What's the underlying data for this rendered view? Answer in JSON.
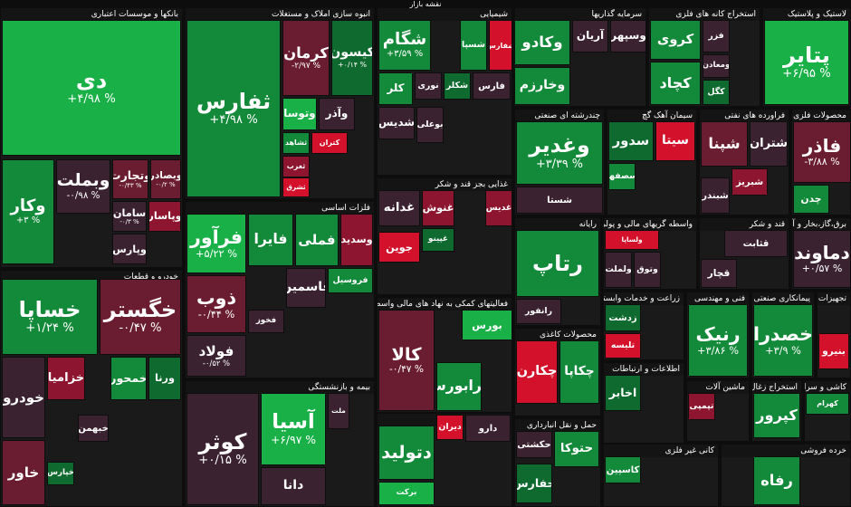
{
  "header": {
    "title": "نقشه بازار"
  },
  "sectors": [
    {
      "title": "بانکها و موسسات اعتباری",
      "tiles": [
        {
          "name": "دی",
          "change": "+۴/۹۸ %"
        },
        {
          "name": "وکار",
          "change": "+۳ %"
        },
        {
          "name": "وبملت",
          "change": "-۰/۹۸ %"
        },
        {
          "name": "وتجارت",
          "change": "-۰/۴۳ %"
        },
        {
          "name": "وبصادر",
          "change": "-۰/۲ %"
        },
        {
          "name": "سامان",
          "change": "-۰/۳ %"
        },
        {
          "name": "وپاسار"
        },
        {
          "name": "وپارس"
        }
      ]
    },
    {
      "title": "انبوه سازی املاک و مستغلات",
      "tiles": [
        {
          "name": "ثفارس",
          "change": "+۴/۹۸ %"
        },
        {
          "name": "کرمان",
          "change": "-۲/۹۷ %"
        },
        {
          "name": "کیسون",
          "change": "+۰/۱۴ %"
        },
        {
          "name": "وتوسا"
        },
        {
          "name": "وآذر"
        },
        {
          "name": "ثشاهد"
        },
        {
          "name": "کتران"
        },
        {
          "name": "ثغرب"
        },
        {
          "name": "ثشرق"
        }
      ]
    },
    {
      "title": "شیمیایی",
      "tiles": [
        {
          "name": "شگام",
          "change": "+۳/۵۹ %"
        },
        {
          "name": "شسپا"
        },
        {
          "name": "شفارس"
        },
        {
          "name": "نوری"
        },
        {
          "name": "شکلر"
        },
        {
          "name": "فارس"
        },
        {
          "name": "کلر"
        },
        {
          "name": "شدیس"
        },
        {
          "name": "بوعلی"
        }
      ]
    },
    {
      "title": "سرمایه گذاریها",
      "tiles": [
        {
          "name": "وکادو"
        },
        {
          "name": "آریان"
        },
        {
          "name": "وسپهر"
        },
        {
          "name": "وخارزم"
        }
      ]
    },
    {
      "title": "استخراج کانه های فلزی",
      "tiles": [
        {
          "name": "کروی"
        },
        {
          "name": "فزر"
        },
        {
          "name": "کچاد"
        },
        {
          "name": "ومعادن"
        },
        {
          "name": "کگل"
        }
      ]
    },
    {
      "title": "لاستیک و پلاستیک",
      "tiles": [
        {
          "name": "پتایر",
          "change": "+۶/۹۵ %"
        }
      ]
    },
    {
      "title": "خودرو و قطعات",
      "tiles": [
        {
          "name": "خساپا",
          "change": "+۱/۲۴ %"
        },
        {
          "name": "خگستر",
          "change": "-۰/۴۷ %"
        },
        {
          "name": "خودرو"
        },
        {
          "name": "خزامیا"
        },
        {
          "name": "خمحور"
        },
        {
          "name": "ورنا"
        },
        {
          "name": "خاور"
        },
        {
          "name": "خپارس"
        },
        {
          "name": "خبهمن"
        }
      ]
    },
    {
      "title": "فلزات اساسی",
      "tiles": [
        {
          "name": "فرآور",
          "change": "+۵/۲۲ %"
        },
        {
          "name": "فایرا"
        },
        {
          "name": "فملی"
        },
        {
          "name": "وسدید"
        },
        {
          "name": "ذوب",
          "change": "-۰/۴۴ %"
        },
        {
          "name": "فولاد",
          "change": "-۰/۵۲ %"
        },
        {
          "name": "فخوز"
        },
        {
          "name": "فاسمین"
        },
        {
          "name": "فروسیل"
        }
      ]
    },
    {
      "title": "بیمه و بازنشستگی",
      "tiles": [
        {
          "name": "کوثر",
          "change": "+۰/۱۵ %"
        },
        {
          "name": "آسیا",
          "change": "+۶/۹۷ %"
        },
        {
          "name": "ملت"
        },
        {
          "name": "دانا"
        }
      ]
    },
    {
      "title": "غذایی بجز قند و شکر",
      "tiles": [
        {
          "name": "غدانه"
        },
        {
          "name": "غنوش"
        },
        {
          "name": "غدیس"
        },
        {
          "name": "غپینو"
        },
        {
          "name": "جوین"
        }
      ]
    },
    {
      "title": "فعالیتهای کمکی به نهاد های مالی واسط",
      "tiles": [
        {
          "name": "کالا",
          "change": "-۰/۴۷ %"
        },
        {
          "name": "بورس"
        },
        {
          "name": "فرابورس"
        }
      ]
    },
    {
      "title": "دارویی",
      "tiles": [
        {
          "name": "دتولید"
        },
        {
          "name": "دیران"
        },
        {
          "name": "دارو"
        },
        {
          "name": "برکت"
        }
      ]
    },
    {
      "title": "چندرشته ای صنعتی",
      "tiles": [
        {
          "name": "وغدیر",
          "change": "+۳/۳۹ %"
        },
        {
          "name": "شستا"
        }
      ]
    },
    {
      "title": "سیمان آهک گچ",
      "tiles": [
        {
          "name": "سدور"
        },
        {
          "name": "سیتا"
        },
        {
          "name": "سصفها"
        }
      ]
    },
    {
      "title": "فراورده های نفتی",
      "tiles": [
        {
          "name": "شپنا"
        },
        {
          "name": "شتران"
        },
        {
          "name": "شبندر"
        },
        {
          "name": "شبریز"
        }
      ]
    },
    {
      "title": "محصولات فلزی",
      "tiles": [
        {
          "name": "فاذر",
          "change": "-۳/۸۸ %"
        },
        {
          "name": "چدن"
        }
      ]
    },
    {
      "title": "رایانه",
      "tiles": [
        {
          "name": "رتاپ"
        },
        {
          "name": "رانفور"
        }
      ]
    },
    {
      "title": "واسطه گریهای مالی و پولی",
      "tiles": [
        {
          "name": "ولساپا"
        },
        {
          "name": "ولملت"
        },
        {
          "name": "وتوق"
        }
      ]
    },
    {
      "title": "قند و شکر",
      "tiles": [
        {
          "name": "قثابت"
        },
        {
          "name": "قچار"
        }
      ]
    },
    {
      "title": "برق،گاز،بخار و آب گرم",
      "tiles": [
        {
          "name": "دماوند",
          "change": "+۰/۵۷ %"
        }
      ]
    },
    {
      "title": "محصولات کاغذی",
      "tiles": [
        {
          "name": "چکارن"
        },
        {
          "name": "چکاپا"
        }
      ]
    },
    {
      "title": "حمل و نقل انبارداری",
      "tiles": [
        {
          "name": "حکشتی"
        },
        {
          "name": "حتوکا"
        },
        {
          "name": "حفارس"
        }
      ]
    },
    {
      "title": "زراعت و خدمات وابسته",
      "tiles": [
        {
          "name": "زدشت"
        },
        {
          "name": "تلیسه"
        }
      ]
    },
    {
      "title": "فنی و مهندسی",
      "tiles": [
        {
          "name": "رنیک",
          "change": "+۳/۸۶ %"
        }
      ]
    },
    {
      "title": "پیمانکاری صنعتی",
      "tiles": [
        {
          "name": "خصدرا",
          "change": "+۳/۹ %"
        }
      ]
    },
    {
      "title": "تجهیزات برقی",
      "tiles": [
        {
          "name": "بنیرو"
        }
      ]
    },
    {
      "title": "اطلاعات و ارتباطات",
      "tiles": [
        {
          "name": "اخابر"
        }
      ]
    },
    {
      "title": "ماشین آلات",
      "tiles": [
        {
          "name": "تپمپی"
        }
      ]
    },
    {
      "title": "استخراج زغال",
      "tiles": [
        {
          "name": "کپرور"
        }
      ]
    },
    {
      "title": "کاشی و سرامیک",
      "tiles": [
        {
          "name": "کهرام"
        }
      ]
    },
    {
      "title": "کانی غیر فلزی",
      "tiles": [
        {
          "name": "کاسپین"
        }
      ]
    },
    {
      "title": "خرده فروشی",
      "tiles": [
        {
          "name": "رفاه"
        }
      ]
    }
  ]
}
